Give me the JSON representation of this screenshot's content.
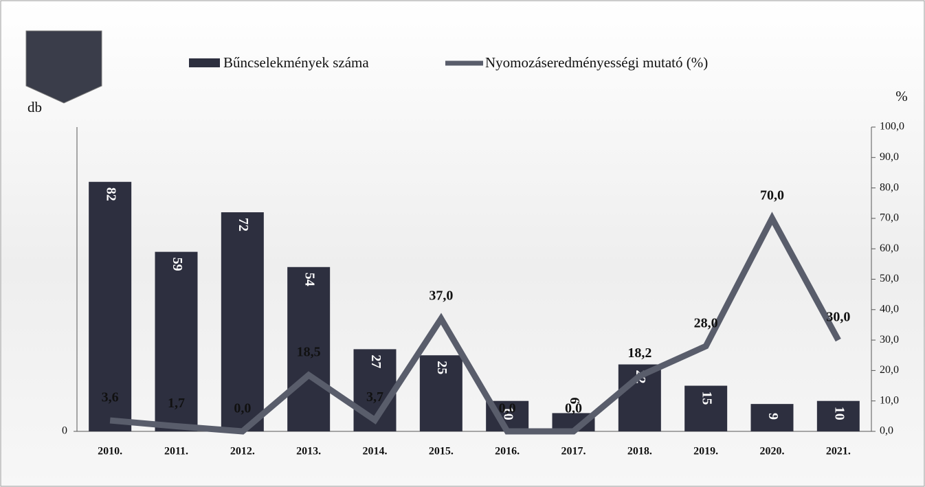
{
  "chart_data": {
    "type": "bar_line",
    "categories": [
      "2010.",
      "2011.",
      "2012.",
      "2013.",
      "2014.",
      "2015.",
      "2016.",
      "2017.",
      "2018.",
      "2019.",
      "2020.",
      "2021."
    ],
    "ylabel": "db",
    "y2label": "%",
    "ylim": [
      0,
      100
    ],
    "yticks": [
      0
    ],
    "y2lim": [
      0,
      100
    ],
    "y2ticks": [
      {
        "value": 0,
        "label": "0,0"
      },
      {
        "value": 10,
        "label": "10,0"
      },
      {
        "value": 20,
        "label": "20,0"
      },
      {
        "value": 30,
        "label": "30,0"
      },
      {
        "value": 40,
        "label": "40,0"
      },
      {
        "value": 50,
        "label": "50,0"
      },
      {
        "value": 60,
        "label": "60,0"
      },
      {
        "value": 70,
        "label": "70,0"
      },
      {
        "value": 80,
        "label": "80,0"
      },
      {
        "value": 90,
        "label": "90,0"
      },
      {
        "value": 100,
        "label": "100,0"
      }
    ],
    "series": [
      {
        "name": "Bűncselekmények száma",
        "type": "bar",
        "color": "#2d2f3f",
        "values": [
          82,
          59,
          72,
          54,
          27,
          25,
          10,
          6,
          22,
          15,
          9,
          10
        ]
      },
      {
        "name": "Nyomozáseredményességi mutató (%)",
        "type": "line",
        "axis": "y2",
        "color": "#595d6b",
        "values": [
          3.6,
          1.7,
          0.0,
          18.5,
          3.7,
          37.0,
          0.0,
          0.0,
          18.2,
          28.0,
          70.0,
          30.0
        ],
        "value_labels": [
          "3,6",
          "1,7",
          "0,0",
          "18,5",
          "3,7",
          "37,0",
          "0,0",
          "0,0",
          "18,2",
          "28,0",
          "70,0",
          "30,0"
        ]
      }
    ]
  }
}
